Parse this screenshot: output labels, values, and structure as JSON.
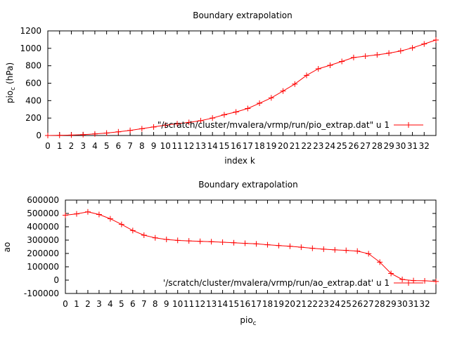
{
  "chart_data": [
    {
      "type": "line",
      "title": "Boundary extrapolation",
      "xlabel": "index k",
      "ylabel": "pio",
      "ylabel_sub": "c",
      "ylabel_unit": "(hPa)",
      "xlim": [
        0,
        33
      ],
      "ylim": [
        0,
        1200
      ],
      "yticks": [
        "0",
        "200",
        "400",
        "600",
        "800",
        "1000",
        "1200"
      ],
      "xticks": [
        "0",
        "1",
        "2",
        "3",
        "4",
        "5",
        "6",
        "7",
        "8",
        "9",
        "10",
        "11",
        "12",
        "13",
        "14",
        "15",
        "16",
        "17",
        "18",
        "19",
        "20",
        "21",
        "22",
        "23",
        "24",
        "25",
        "26",
        "27",
        "28",
        "29",
        "30",
        "31",
        "32"
      ],
      "legend_position": "bottom-right",
      "grid": false,
      "series": [
        {
          "name": "\"/scratch/cluster/mvalera/vrmp/run/pio_extrap.dat\" u 1",
          "color": "#ff0000",
          "marker": "plus",
          "x": [
            0,
            1,
            2,
            3,
            4,
            5,
            6,
            7,
            8,
            9,
            10,
            11,
            12,
            13,
            14,
            15,
            16,
            17,
            18,
            19,
            20,
            21,
            22,
            23,
            24,
            25,
            26,
            27,
            28,
            29,
            30,
            31,
            32,
            33
          ],
          "y": [
            0,
            2,
            5,
            10,
            18,
            28,
            42,
            58,
            78,
            98,
            118,
            135,
            150,
            170,
            200,
            238,
            270,
            310,
            370,
            432,
            510,
            590,
            690,
            765,
            805,
            850,
            895,
            910,
            925,
            945,
            970,
            1005,
            1050,
            1095
          ]
        }
      ]
    },
    {
      "type": "line",
      "title": "Boundary extrapolation",
      "xlabel": "pio",
      "xlabel_sub": "c",
      "ylabel": "ao",
      "xlim": [
        0,
        33
      ],
      "ylim": [
        -100000,
        600000
      ],
      "yticks": [
        "-100000",
        "0",
        "100000",
        "200000",
        "300000",
        "400000",
        "500000",
        "600000"
      ],
      "xticks": [
        "0",
        "1",
        "2",
        "3",
        "4",
        "5",
        "6",
        "7",
        "8",
        "9",
        "10",
        "11",
        "12",
        "13",
        "14",
        "15",
        "16",
        "17",
        "18",
        "19",
        "20",
        "21",
        "22",
        "23",
        "24",
        "25",
        "26",
        "27",
        "28",
        "29",
        "30",
        "31",
        "32"
      ],
      "legend_position": "bottom-right",
      "grid": false,
      "series": [
        {
          "name": "'/scratch/cluster/mvalera/vrmp/run/ao_extrap.dat' u 1",
          "color": "#ff0000",
          "marker": "plus",
          "x": [
            0,
            1,
            2,
            3,
            4,
            5,
            6,
            7,
            8,
            9,
            10,
            11,
            12,
            13,
            14,
            15,
            16,
            17,
            18,
            19,
            20,
            21,
            22,
            23,
            24,
            25,
            26,
            27,
            28,
            29,
            30,
            31,
            32,
            33
          ],
          "y": [
            487000,
            497000,
            512000,
            492000,
            460000,
            418000,
            372000,
            337000,
            317000,
            305000,
            298000,
            294000,
            291000,
            288000,
            284000,
            280000,
            276000,
            272000,
            265000,
            259000,
            254000,
            247000,
            239000,
            232000,
            227000,
            223000,
            218000,
            198000,
            135000,
            50000,
            5000,
            -3000,
            -5000,
            -10000
          ]
        }
      ]
    }
  ]
}
